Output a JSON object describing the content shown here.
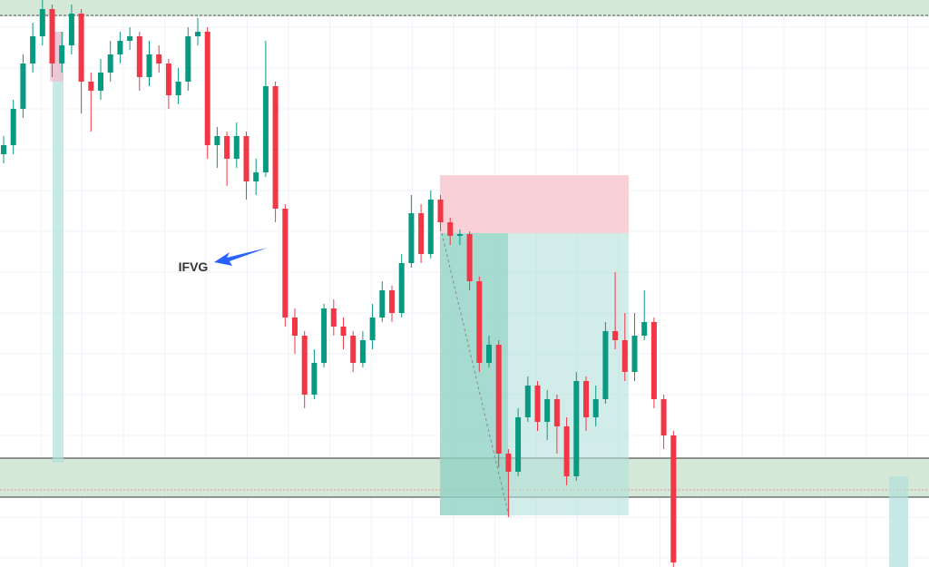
{
  "chart_data": {
    "type": "candlestick",
    "annotation": "IFVG",
    "up_color": "#089981",
    "down_color": "#f23645",
    "grid": true,
    "ylim": [
      0,
      625
    ],
    "open": [
      455,
      465,
      505,
      555,
      585,
      615,
      555,
      575,
      610,
      535,
      525,
      545,
      565,
      580,
      585,
      540,
      565,
      555,
      520,
      535,
      585,
      590,
      465,
      475,
      450,
      475,
      425,
      435,
      530,
      395,
      275,
      255,
      190,
      225,
      285,
      265,
      255,
      225,
      250,
      275,
      305,
      280,
      335,
      390,
      345,
      405,
      380,
      365,
      367,
      315,
      225,
      245,
      125,
      105,
      165,
      200,
      160,
      185,
      155,
      100,
      205,
      165,
      185,
      260,
      250,
      215,
      255,
      270,
      185,
      145
    ],
    "high": [
      475,
      515,
      565,
      600,
      625,
      620,
      590,
      620,
      615,
      545,
      560,
      580,
      590,
      595,
      590,
      580,
      575,
      560,
      550,
      595,
      605,
      595,
      485,
      480,
      490,
      480,
      450,
      580,
      535,
      400,
      285,
      260,
      240,
      290,
      295,
      275,
      260,
      260,
      290,
      315,
      310,
      345,
      410,
      400,
      415,
      410,
      385,
      372,
      370,
      320,
      255,
      250,
      130,
      175,
      210,
      205,
      195,
      190,
      165,
      215,
      210,
      200,
      270,
      325,
      280,
      280,
      305,
      275,
      190,
      150
    ],
    "low": [
      445,
      455,
      495,
      545,
      575,
      540,
      545,
      565,
      500,
      480,
      515,
      535,
      555,
      570,
      525,
      530,
      545,
      505,
      510,
      525,
      575,
      450,
      440,
      420,
      440,
      405,
      410,
      430,
      380,
      265,
      235,
      175,
      185,
      220,
      255,
      240,
      215,
      220,
      240,
      270,
      270,
      275,
      330,
      335,
      340,
      370,
      355,
      355,
      305,
      215,
      220,
      110,
      55,
      100,
      160,
      150,
      140,
      125,
      90,
      95,
      150,
      155,
      180,
      240,
      205,
      205,
      250,
      175,
      130,
      0
    ],
    "close": [
      465,
      505,
      555,
      585,
      615,
      555,
      575,
      610,
      535,
      525,
      545,
      565,
      580,
      585,
      540,
      565,
      555,
      520,
      535,
      585,
      590,
      465,
      475,
      450,
      475,
      425,
      435,
      530,
      395,
      275,
      255,
      190,
      225,
      285,
      265,
      255,
      225,
      250,
      275,
      305,
      280,
      335,
      390,
      345,
      405,
      380,
      365,
      367,
      315,
      225,
      245,
      125,
      105,
      165,
      200,
      160,
      185,
      155,
      100,
      205,
      165,
      185,
      260,
      250,
      215,
      255,
      270,
      185,
      145,
      5
    ]
  }
}
